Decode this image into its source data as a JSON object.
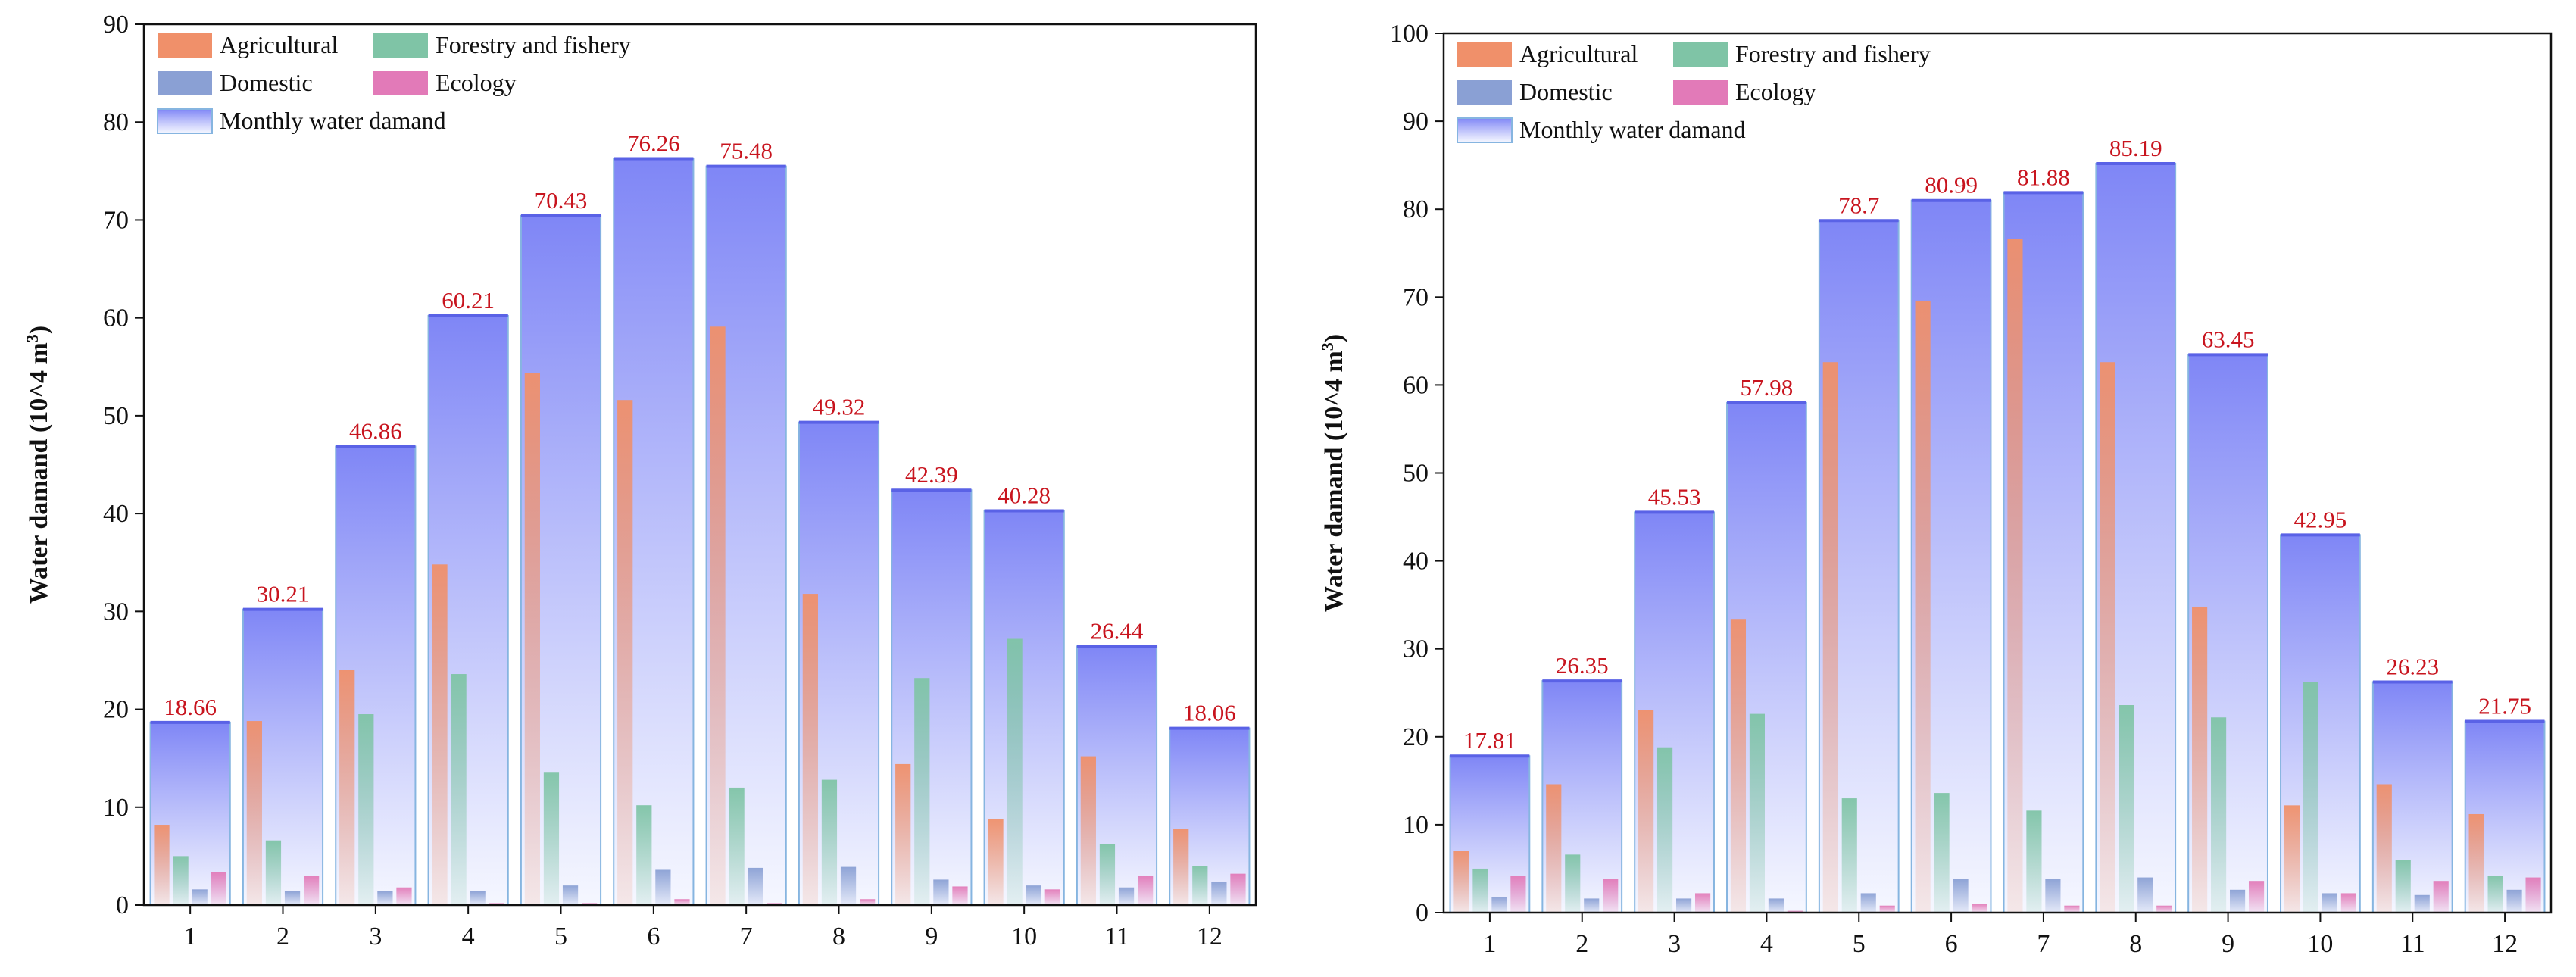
{
  "chart_data": [
    {
      "type": "bar",
      "categories": [
        "1",
        "2",
        "3",
        "4",
        "5",
        "6",
        "7",
        "8",
        "9",
        "10",
        "11",
        "12"
      ],
      "ylabel": "Water damand (10^4 m³)",
      "ylabel_base": "Water damand (10^4 m",
      "ylabel_sup": "3",
      "ylabel_close": ")",
      "ylim": [
        0,
        90
      ],
      "yticks": [
        0,
        10,
        20,
        30,
        40,
        50,
        60,
        70,
        80,
        90
      ],
      "total": {
        "name": "Monthly water damand",
        "values": [
          18.66,
          30.21,
          46.86,
          60.21,
          70.43,
          76.26,
          75.48,
          49.32,
          42.39,
          40.28,
          26.44,
          18.06
        ],
        "labels": [
          "18.66",
          "30.21",
          "46.86",
          "60.21",
          "70.43",
          "76.26",
          "75.48",
          "49.32",
          "42.39",
          "40.28",
          "26.44",
          "18.06"
        ]
      },
      "series": [
        {
          "name": "Agricultural",
          "values": [
            8.2,
            18.8,
            24.0,
            34.8,
            54.4,
            51.6,
            59.1,
            31.8,
            14.4,
            8.8,
            15.2,
            7.8
          ]
        },
        {
          "name": "Forestry and fishery",
          "values": [
            5.0,
            6.6,
            19.5,
            23.6,
            13.6,
            10.2,
            12.0,
            12.8,
            23.2,
            27.2,
            6.2,
            4.0
          ]
        },
        {
          "name": "Domestic",
          "values": [
            1.6,
            1.4,
            1.4,
            1.4,
            2.0,
            3.6,
            3.8,
            3.9,
            2.6,
            2.0,
            1.8,
            2.4
          ]
        },
        {
          "name": "Ecology",
          "values": [
            3.4,
            3.0,
            1.8,
            0.2,
            0.2,
            0.6,
            0.2,
            0.6,
            1.9,
            1.6,
            3.0,
            3.2
          ]
        }
      ],
      "legend": [
        "Agricultural",
        "Forestry and fishery",
        "Domestic",
        "Ecology",
        "Monthly water damand"
      ],
      "legend_position": "top-left"
    },
    {
      "type": "bar",
      "categories": [
        "1",
        "2",
        "3",
        "4",
        "5",
        "6",
        "7",
        "8",
        "9",
        "10",
        "11",
        "12"
      ],
      "ylabel": "Water damand (10^4 m³)",
      "ylabel_base": "Water damand (10^4 m",
      "ylabel_sup": "3",
      "ylabel_close": ")",
      "ylim": [
        0,
        100
      ],
      "yticks": [
        0,
        10,
        20,
        30,
        40,
        50,
        60,
        70,
        80,
        90,
        100
      ],
      "total": {
        "name": "Monthly water damand",
        "values": [
          17.81,
          26.35,
          45.53,
          57.98,
          78.7,
          80.99,
          81.88,
          85.19,
          63.45,
          42.95,
          26.23,
          21.75
        ],
        "labels": [
          "17.81",
          "26.35",
          "45.53",
          "57.98",
          "78.7",
          "80.99",
          "81.88",
          "85.19",
          "63.45",
          "42.95",
          "26.23",
          "21.75"
        ]
      },
      "series": [
        {
          "name": "Agricultural",
          "values": [
            7.0,
            14.6,
            23.0,
            33.4,
            62.6,
            69.6,
            76.6,
            62.6,
            34.8,
            12.2,
            14.6,
            11.2
          ]
        },
        {
          "name": "Forestry and fishery",
          "values": [
            5.0,
            6.6,
            18.8,
            22.6,
            13.0,
            13.6,
            11.6,
            23.6,
            22.2,
            26.2,
            6.0,
            4.2
          ]
        },
        {
          "name": "Domestic",
          "values": [
            1.8,
            1.6,
            1.6,
            1.6,
            2.2,
            3.8,
            3.8,
            4.0,
            2.6,
            2.2,
            2.0,
            2.6
          ]
        },
        {
          "name": "Ecology",
          "values": [
            4.2,
            3.8,
            2.2,
            0.2,
            0.8,
            1.0,
            0.8,
            0.8,
            3.6,
            2.2,
            3.6,
            4.0
          ]
        }
      ],
      "legend": [
        "Agricultural",
        "Forestry and fishery",
        "Domestic",
        "Ecology",
        "Monthly water damand"
      ],
      "legend_position": "top-left"
    }
  ],
  "colors": {
    "Agricultural": "#f0906a",
    "Forestry and fishery": "#7fc4a6",
    "Domestic": "#8aa0d4",
    "Ecology": "#e27ab8",
    "total_top": "#7f86f6",
    "total_bottom": "#f4f6ff",
    "total_stroke": "#86b5e0",
    "label": "#c8141e"
  }
}
